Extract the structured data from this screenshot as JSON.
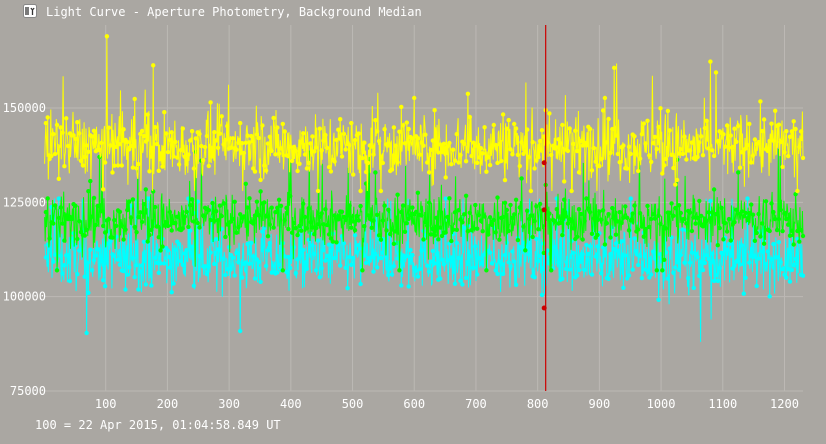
{
  "window": {
    "title": "Light Curve - Aperture Photometry, Background Median",
    "icon": "light-curve-app-icon"
  },
  "footer": {
    "time_reference": "100 = 22 Apr 2015, 01:04:58.849 UT"
  },
  "colors": {
    "background": "#aaa7a2",
    "grid": "#bcb9b4",
    "series_yellow": "#ffff00",
    "series_green": "#00ff00",
    "series_cyan": "#00ffff",
    "cursor": "#cc0000"
  },
  "chart_data": {
    "type": "line",
    "title": "",
    "xlabel": "",
    "ylabel": "",
    "xlim": [
      0,
      1230
    ],
    "ylim": [
      75000,
      172000
    ],
    "x_ticks": [
      100,
      200,
      300,
      400,
      500,
      600,
      700,
      800,
      900,
      1000,
      1100,
      1200
    ],
    "y_ticks": [
      75000,
      100000,
      125000,
      150000
    ],
    "grid": true,
    "legend": "none",
    "cursor": {
      "x": 813,
      "values": [
        135500,
        123000,
        97000
      ]
    },
    "series": [
      {
        "color": "#ffff00",
        "x_start": 1,
        "x_end": 1230,
        "mean": 140000,
        "noise": 6000,
        "range": [
          128000,
          169000
        ]
      },
      {
        "color": "#00ff00",
        "x_start": 1,
        "x_end": 1230,
        "mean": 120500,
        "noise": 4800,
        "range": [
          107000,
          140000
        ]
      },
      {
        "color": "#00ffff",
        "x_start": 1,
        "x_end": 1230,
        "mean": 110000,
        "noise": 5500,
        "range": [
          88000,
          126000
        ]
      }
    ]
  }
}
